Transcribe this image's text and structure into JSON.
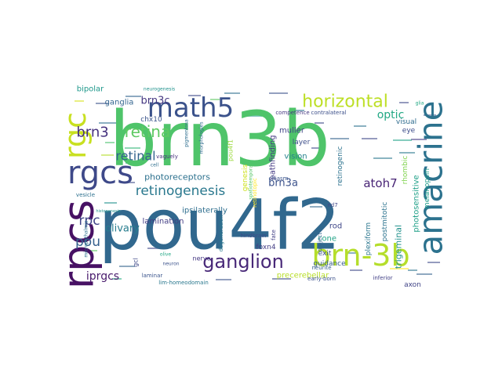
{
  "words": [
    {
      "text": "brn3b",
      "color": "#4fc46a"
    },
    {
      "text": "pou4f2",
      "color": "#31688e"
    },
    {
      "text": "rgc",
      "color": "#c8e020"
    },
    {
      "text": "rgcs",
      "color": "#3e4989"
    },
    {
      "text": "rpcs",
      "color": "#471164"
    },
    {
      "text": "math5",
      "color": "#3b528b"
    },
    {
      "text": "amacrine",
      "color": "#2c728e"
    },
    {
      "text": "brn-3b",
      "color": "#b5de2b"
    },
    {
      "text": "horizontal",
      "color": "#bddf26"
    },
    {
      "text": "ganglion",
      "color": "#482878"
    },
    {
      "text": "retinogenesis",
      "color": "#2a788e"
    },
    {
      "text": "retina",
      "color": "#5ec962"
    },
    {
      "text": "retinal",
      "color": "#33638d"
    },
    {
      "text": "brn3",
      "color": "#46327e"
    },
    {
      "text": "rpc",
      "color": "#404387"
    },
    {
      "text": "pou",
      "color": "#35608d"
    },
    {
      "text": "brn3a",
      "color": "#3b528b"
    },
    {
      "text": "atoh7",
      "color": "#482475"
    },
    {
      "text": "brn3c",
      "color": "#453781"
    },
    {
      "text": "iprgcs",
      "color": "#481a6c"
    },
    {
      "text": "olivary",
      "color": "#287d8e"
    },
    {
      "text": "optic",
      "color": "#22a884"
    },
    {
      "text": "photoreceptors",
      "color": "#2d718e"
    },
    {
      "text": "precerebellar",
      "color": "#b8de29"
    },
    {
      "text": "trigeminal",
      "color": "#21918c"
    },
    {
      "text": "photosensitive",
      "color": "#1fa088"
    },
    {
      "text": "vision",
      "color": "#26828e"
    },
    {
      "text": "rod",
      "color": "#3f4788"
    },
    {
      "text": "cone",
      "color": "#20a386"
    },
    {
      "text": "muller",
      "color": "#414487"
    },
    {
      "text": "pathfinding",
      "color": "#443983"
    },
    {
      "text": "ipsilaterally",
      "color": "#2e6e8e"
    },
    {
      "text": "lamination",
      "color": "#433e85"
    },
    {
      "text": "bipolar",
      "color": "#1f988b"
    },
    {
      "text": "ganglia",
      "color": "#32648e"
    },
    {
      "text": "chx10",
      "color": "#3a548c"
    },
    {
      "text": "nerve",
      "color": "#453882"
    },
    {
      "text": "layer",
      "color": "#3d4e8a"
    },
    {
      "text": "exit",
      "color": "#3c508b"
    },
    {
      "text": "guidance",
      "color": "#365c8d"
    },
    {
      "text": "plexiform",
      "color": "#2a768e"
    },
    {
      "text": "foxn4",
      "color": "#433d84"
    },
    {
      "text": "visual",
      "color": "#2f6c8e"
    },
    {
      "text": "eye",
      "color": "#3d4d8a"
    },
    {
      "text": "rhombic",
      "color": "#7fd34e"
    },
    {
      "text": "melanopsin",
      "color": "#1e9c89"
    },
    {
      "text": "axon",
      "color": "#414487"
    },
    {
      "text": "postmitotic",
      "color": "#2c738e"
    },
    {
      "text": "retinogenic",
      "color": "#2c728e"
    },
    {
      "text": "gcl",
      "color": "#3e4989"
    },
    {
      "text": "pou4f1",
      "color": "#9bd93c"
    },
    {
      "text": "genesis",
      "color": "#cde11d"
    },
    {
      "text": "degeneration",
      "color": "#297a8e"
    },
    {
      "text": "vaguely",
      "color": "#46327e"
    },
    {
      "text": "pigmentosa",
      "color": "#2e6e8e"
    },
    {
      "text": "morphologies",
      "color": "#2f6b8e"
    },
    {
      "text": "chiasm",
      "color": "#3a548c"
    },
    {
      "text": "nd7",
      "color": "#404688"
    },
    {
      "text": "project",
      "color": "#33628d"
    },
    {
      "text": "fate",
      "color": "#424186"
    },
    {
      "text": "neurite",
      "color": "#355f8d"
    },
    {
      "text": "early-born",
      "color": "#3b518b"
    },
    {
      "text": "inferior",
      "color": "#424086"
    },
    {
      "text": "competence",
      "color": "#453781"
    },
    {
      "text": "contralateral",
      "color": "#3c4f8a"
    },
    {
      "text": "neurogenesis",
      "color": "#20928c"
    },
    {
      "text": "hindbrain",
      "color": "#3e4a89"
    },
    {
      "text": "laminar",
      "color": "#3a548c"
    },
    {
      "text": "lim-homeodomain",
      "color": "#2a788e"
    },
    {
      "text": "neuron",
      "color": "#3b528b"
    },
    {
      "text": "olive",
      "color": "#22a785"
    },
    {
      "text": "vesicle",
      "color": "#2d708e"
    },
    {
      "text": "microphthalmia",
      "color": "#2c718e"
    },
    {
      "text": "histogenesis",
      "color": "#21918c"
    },
    {
      "text": "retinotopic",
      "color": "#fde725"
    },
    {
      "text": "glia",
      "color": "#22a884"
    },
    {
      "text": "cell",
      "color": "#2e6f8e"
    },
    {
      "text": "spatiotemporal",
      "color": "#56c667"
    }
  ]
}
